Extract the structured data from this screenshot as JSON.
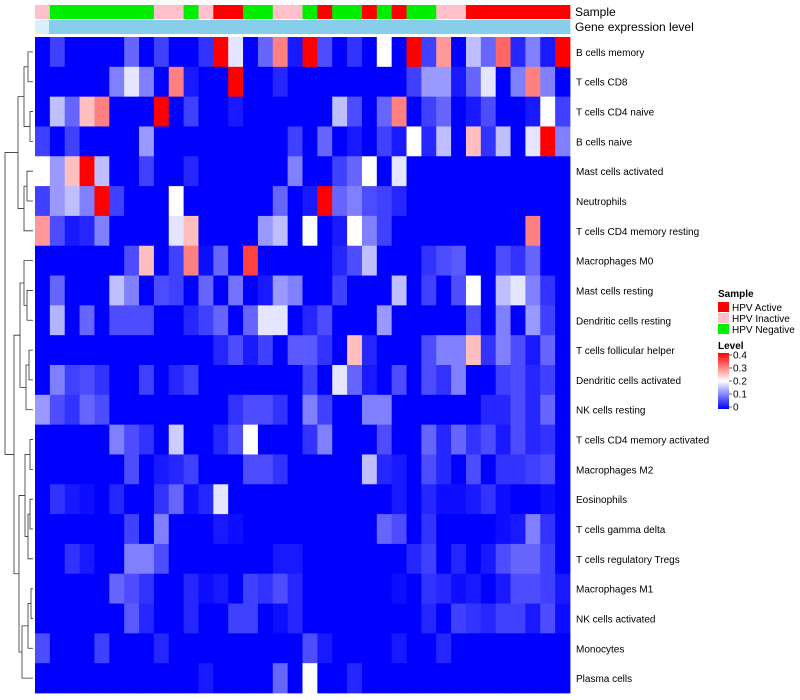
{
  "chart_data": {
    "type": "heatmap",
    "title": "",
    "annotation_tracks": [
      "Sample",
      "Gene expression level"
    ],
    "sample_legend": {
      "title": "Sample",
      "entries": [
        {
          "label": "HPV Active",
          "color": "#ff0000"
        },
        {
          "label": "HPV Inactive",
          "color": "#ffc0cb"
        },
        {
          "label": "HPV Negative",
          "color": "#00ee00"
        }
      ]
    },
    "level_legend": {
      "title": "Level",
      "ticks": [
        "0.4",
        "0.3",
        "0.2",
        "0.1",
        "0"
      ],
      "range": [
        0,
        0.4
      ],
      "colors": [
        "#0000ff",
        "#ffffff",
        "#ff0000"
      ]
    },
    "gene_expression_color": "#87ceeb",
    "sample_groups": [
      "Inactive",
      "Negative",
      "Negative",
      "Negative",
      "Negative",
      "Negative",
      "Negative",
      "Negative",
      "Inactive",
      "Inactive",
      "Negative",
      "Inactive",
      "Active",
      "Active",
      "Negative",
      "Negative",
      "Inactive",
      "Inactive",
      "Negative",
      "Active",
      "Negative",
      "Negative",
      "Active",
      "Negative",
      "Active",
      "Negative",
      "Negative",
      "Inactive",
      "Inactive",
      "Active",
      "Active",
      "Active",
      "Active",
      "Active",
      "Active",
      "Active"
    ],
    "rows": [
      "B cells memory",
      "T cells CD8",
      "T cells CD4 naive",
      "B cells naive",
      "Mast cells activated",
      "Neutrophils",
      "T cells CD4 memory resting",
      "Macrophages M0",
      "Mast cells resting",
      "Dendritic cells resting",
      "T cells follicular helper",
      "Dendritic cells activated",
      "NK cells resting",
      "T cells CD4 memory activated",
      "Macrophages M2",
      "Eosinophils",
      "T cells gamma delta",
      "T cells regulatory  Tregs",
      "Macrophages M1",
      "NK cells activated",
      "Monocytes",
      "Plasma cells"
    ],
    "values": [
      [
        0,
        0.05,
        0,
        0,
        0,
        0,
        0.08,
        0,
        0.05,
        0,
        0,
        0.04,
        0.4,
        0.18,
        0,
        0.08,
        0.3,
        0.02,
        0.4,
        0.06,
        0,
        0.04,
        0,
        0.2,
        0,
        0.4,
        0.05,
        0.28,
        0,
        0.15,
        0.08,
        0.32,
        0.03,
        0.1,
        0.02,
        0.4
      ],
      [
        0,
        0,
        0,
        0,
        0,
        0.1,
        0.18,
        0.1,
        0,
        0.3,
        0.02,
        0,
        0,
        0.4,
        0,
        0,
        0.03,
        0,
        0,
        0,
        0,
        0,
        0,
        0,
        0,
        0.05,
        0.12,
        0.12,
        0.02,
        0.08,
        0.18,
        0,
        0.1,
        0.3,
        0.1,
        0
      ],
      [
        0,
        0.15,
        0.08,
        0.25,
        0.3,
        0,
        0,
        0,
        0.4,
        0,
        0.05,
        0,
        0,
        0.02,
        0,
        0,
        0,
        0,
        0,
        0,
        0.15,
        0.06,
        0,
        0.08,
        0.3,
        0,
        0.05,
        0.08,
        0,
        0.02,
        0.06,
        0,
        0,
        0.02,
        0.2,
        0.05
      ],
      [
        0.05,
        0,
        0.05,
        0,
        0,
        0,
        0,
        0.12,
        0,
        0,
        0,
        0,
        0,
        0,
        0,
        0,
        0,
        0.05,
        0,
        0.08,
        0,
        0.02,
        0,
        0.05,
        0.02,
        0.2,
        0.03,
        0.15,
        0,
        0.25,
        0.04,
        0.15,
        0,
        0.18,
        0.4,
        0.1
      ],
      [
        0.2,
        0.12,
        0.25,
        0.4,
        0.15,
        0,
        0,
        0.05,
        0,
        0,
        0.03,
        0,
        0,
        0,
        0,
        0,
        0,
        0.1,
        0,
        0,
        0.05,
        0.08,
        0.2,
        0,
        0.18,
        0,
        0,
        0,
        0,
        0,
        0,
        0,
        0,
        0,
        0,
        0
      ],
      [
        0.05,
        0.12,
        0.15,
        0.1,
        0.4,
        0.05,
        0,
        0,
        0,
        0.2,
        0,
        0,
        0,
        0,
        0,
        0,
        0.08,
        0,
        0.02,
        0.4,
        0.08,
        0.1,
        0.06,
        0.05,
        0.03,
        0,
        0,
        0,
        0,
        0,
        0,
        0,
        0,
        0,
        0,
        0
      ],
      [
        0.28,
        0.06,
        0.02,
        0.03,
        0.1,
        0,
        0,
        0,
        0,
        0.18,
        0.25,
        0,
        0,
        0,
        0,
        0.12,
        0.15,
        0,
        0.2,
        0,
        0.02,
        0.2,
        0.1,
        0.05,
        0,
        0,
        0,
        0,
        0,
        0,
        0,
        0,
        0,
        0.3,
        0,
        0
      ],
      [
        0,
        0,
        0,
        0,
        0,
        0,
        0.06,
        0.25,
        0,
        0.05,
        0.3,
        0.01,
        0.08,
        0,
        0.35,
        0,
        0,
        0,
        0,
        0,
        0.03,
        0.06,
        0.15,
        0,
        0,
        0,
        0.04,
        0.06,
        0.07,
        0,
        0,
        0.06,
        0.04,
        0.08,
        0,
        0
      ],
      [
        0,
        0.08,
        0,
        0,
        0,
        0.15,
        0.1,
        0,
        0.06,
        0.05,
        0,
        0.08,
        0,
        0.09,
        0,
        0.02,
        0.12,
        0.1,
        0,
        0,
        0.05,
        0,
        0,
        0,
        0.15,
        0,
        0.05,
        0,
        0.06,
        0.2,
        0,
        0.15,
        0.18,
        0.1,
        0.04,
        0
      ],
      [
        0,
        0.14,
        0,
        0.08,
        0,
        0.06,
        0.06,
        0.06,
        0,
        0,
        0.03,
        0.05,
        0.08,
        0,
        0.08,
        0.18,
        0.18,
        0,
        0.03,
        0.06,
        0,
        0,
        0,
        0.12,
        0,
        0,
        0,
        0,
        0,
        0.06,
        0,
        0.1,
        0,
        0.12,
        0.05,
        0
      ],
      [
        0,
        0,
        0,
        0,
        0,
        0,
        0,
        0,
        0,
        0,
        0,
        0,
        0.03,
        0.06,
        0.02,
        0.05,
        0,
        0.07,
        0.07,
        0.04,
        0,
        0.25,
        0.03,
        0,
        0,
        0,
        0.06,
        0.1,
        0.1,
        0.25,
        0.04,
        0.1,
        0.06,
        0.02,
        0.08,
        0
      ],
      [
        0,
        0.1,
        0.05,
        0.06,
        0.04,
        0,
        0,
        0.05,
        0,
        0.03,
        0.05,
        0,
        0,
        0,
        0,
        0,
        0,
        0,
        0.05,
        0,
        0.18,
        0.08,
        0.02,
        0,
        0.06,
        0,
        0.06,
        0.04,
        0.1,
        0,
        0,
        0.05,
        0.06,
        0.03,
        0.05,
        0
      ],
      [
        0.12,
        0.06,
        0.04,
        0.08,
        0.06,
        0,
        0,
        0,
        0,
        0,
        0,
        0,
        0,
        0.04,
        0.06,
        0.06,
        0.04,
        0,
        0.1,
        0.05,
        0,
        0,
        0.1,
        0.1,
        0,
        0,
        0,
        0,
        0,
        0,
        0.03,
        0.03,
        0.06,
        0.03,
        0.08,
        0
      ],
      [
        0,
        0,
        0,
        0,
        0,
        0.1,
        0.06,
        0.04,
        0,
        0.16,
        0,
        0,
        0.03,
        0.06,
        0.2,
        0,
        0,
        0,
        0.04,
        0.1,
        0,
        0,
        0,
        0.06,
        0,
        0,
        0.08,
        0.03,
        0.08,
        0.04,
        0.06,
        0.02,
        0.06,
        0.03,
        0.04,
        0
      ],
      [
        0,
        0,
        0,
        0,
        0,
        0,
        0.06,
        0,
        0.02,
        0.03,
        0.05,
        0,
        0,
        0,
        0.06,
        0.06,
        0.04,
        0,
        0,
        0,
        0,
        0,
        0.15,
        0.03,
        0.02,
        0,
        0.06,
        0.03,
        0,
        0.06,
        0,
        0.04,
        0.04,
        0.05,
        0.06,
        0
      ],
      [
        0,
        0.04,
        0.02,
        0.01,
        0,
        0.03,
        0,
        0,
        0.04,
        0.08,
        0.01,
        0.03,
        0.18,
        0,
        0,
        0,
        0,
        0,
        0,
        0,
        0,
        0,
        0,
        0,
        0.02,
        0,
        0.03,
        0.01,
        0.01,
        0.02,
        0.04,
        0.01,
        0,
        0,
        0.01,
        0
      ],
      [
        0,
        0,
        0,
        0,
        0,
        0,
        0.05,
        0,
        0.1,
        0,
        0,
        0,
        0.02,
        0.01,
        0,
        0,
        0,
        0,
        0,
        0,
        0,
        0,
        0,
        0.08,
        0.06,
        0,
        0.04,
        0,
        0,
        0,
        0,
        0.01,
        0.02,
        0.1,
        0.04,
        0
      ],
      [
        0,
        0,
        0.04,
        0.02,
        0,
        0,
        0.1,
        0.1,
        0.06,
        0,
        0,
        0,
        0,
        0,
        0,
        0,
        0.02,
        0.02,
        0,
        0,
        0,
        0,
        0,
        0,
        0,
        0.03,
        0.05,
        0,
        0.03,
        0,
        0.02,
        0.06,
        0.08,
        0.08,
        0.05,
        0
      ],
      [
        0,
        0,
        0,
        0,
        0,
        0.08,
        0.06,
        0.04,
        0,
        0,
        0.03,
        0.01,
        0.02,
        0,
        0.05,
        0.04,
        0.06,
        0.03,
        0,
        0,
        0,
        0,
        0,
        0,
        0.01,
        0,
        0.04,
        0.03,
        0.01,
        0.02,
        0,
        0.02,
        0.06,
        0.06,
        0.05,
        0.02
      ],
      [
        0,
        0,
        0,
        0,
        0,
        0,
        0.07,
        0.03,
        0,
        0,
        0.03,
        0,
        0,
        0.05,
        0.05,
        0,
        0.01,
        0.03,
        0,
        0,
        0,
        0,
        0,
        0,
        0,
        0,
        0.03,
        0,
        0.05,
        0.04,
        0.03,
        0.05,
        0.05,
        0.02,
        0.06,
        0.01
      ],
      [
        0.06,
        0,
        0,
        0,
        0.05,
        0,
        0,
        0,
        0.03,
        0,
        0,
        0,
        0,
        0,
        0,
        0,
        0,
        0,
        0.06,
        0.02,
        0,
        0,
        0,
        0,
        0.02,
        0,
        0,
        0.03,
        0,
        0,
        0,
        0,
        0,
        0,
        0,
        0
      ],
      [
        0,
        0,
        0,
        0,
        0,
        0,
        0,
        0,
        0,
        0,
        0,
        0.02,
        0,
        0,
        0,
        0,
        0.08,
        0,
        0.2,
        0,
        0,
        0.03,
        0,
        0,
        0,
        0,
        0,
        0,
        0,
        0,
        0,
        0,
        0,
        0,
        0,
        0
      ]
    ]
  }
}
